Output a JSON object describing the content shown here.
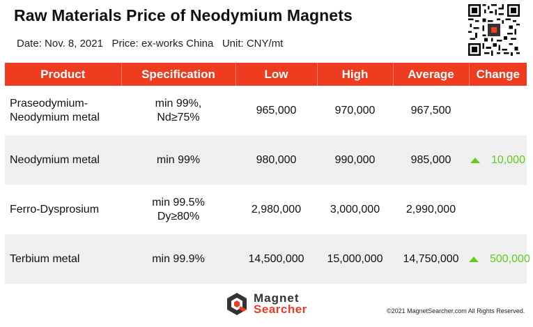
{
  "header": {
    "title": "Raw Materials Price of Neodymium Magnets",
    "subtitle": "Date: Nov. 8, 2021   Price: ex-works China   Unit: CNY/mt"
  },
  "qr_code": {
    "icon": "qr-code-icon"
  },
  "table": {
    "columns": [
      "Product",
      "Specification",
      "Low",
      "High",
      "Average",
      "Change"
    ],
    "rows": [
      {
        "product_line1": "Praseodymium-",
        "product_line2": "Neodymium metal",
        "spec_line1": "min 99%,",
        "spec_line2": "Nd≥75%",
        "low": "965,000",
        "high": "970,000",
        "average": "967,500",
        "change": ""
      },
      {
        "product_line1": "Neodymium metal",
        "product_line2": "",
        "spec_line1": "min 99%",
        "spec_line2": "",
        "low": "980,000",
        "high": "990,000",
        "average": "985,000",
        "change": "10,000"
      },
      {
        "product_line1": "Ferro-Dysprosium",
        "product_line2": "",
        "spec_line1": "min 99.5%",
        "spec_line2": "Dy≥80%",
        "low": "2,980,000",
        "high": "3,000,000",
        "average": "2,990,000",
        "change": ""
      },
      {
        "product_line1": "Terbium metal",
        "product_line2": "",
        "spec_line1": "min 99.9%",
        "spec_line2": "",
        "low": "14,500,000",
        "high": "15,000,000",
        "average": "14,750,000",
        "change": "500,000"
      }
    ]
  },
  "colors": {
    "header_bg": "#ef3b20",
    "row_alt_bg": "#efefef",
    "up_green": "#5fcc1e"
  },
  "footer": {
    "logo_line1": "Magnet",
    "logo_line2": "Searcher",
    "copyright": "©2021 MagnetSearcher.com All Rights Reserved."
  }
}
